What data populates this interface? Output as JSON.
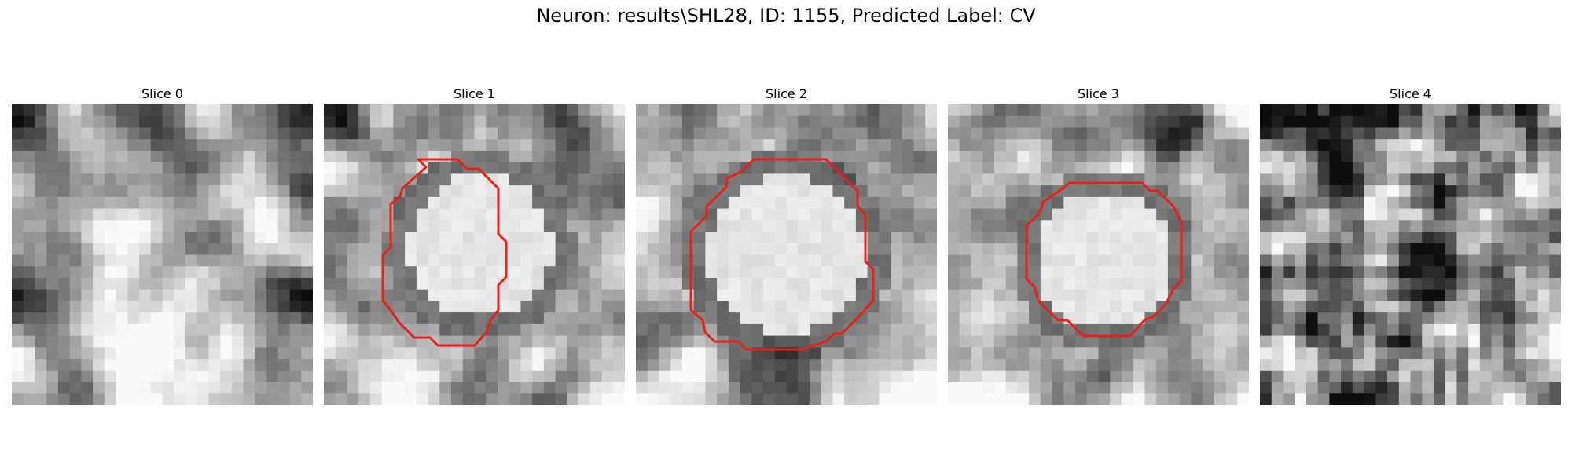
{
  "figure": {
    "title": "Neuron: results\\SHL28, ID: 1155, Predicted Label: CV"
  },
  "panels": [
    {
      "title": "Slice 0",
      "contour": false
    },
    {
      "title": "Slice 1",
      "contour": true
    },
    {
      "title": "Slice 2",
      "contour": true
    },
    {
      "title": "Slice 3",
      "contour": true
    },
    {
      "title": "Slice 4",
      "contour": false
    }
  ],
  "colors": {
    "contour": "#e8201a",
    "background": "#ffffff"
  }
}
